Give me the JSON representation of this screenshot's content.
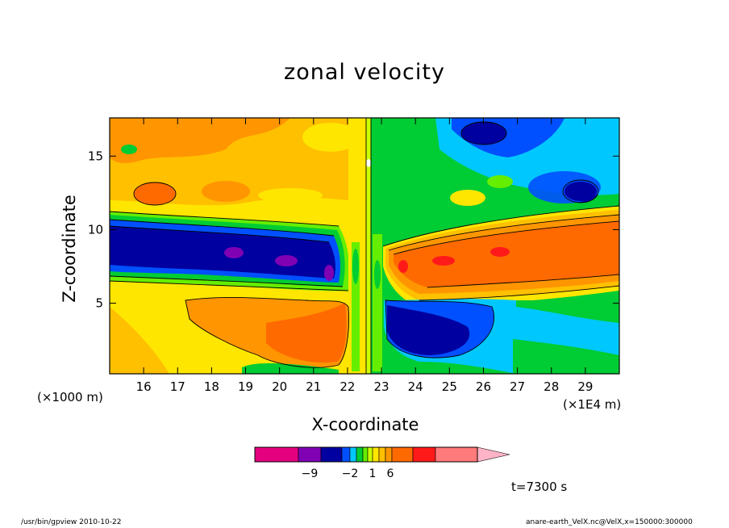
{
  "chart_data": {
    "type": "heatmap",
    "title": "zonal velocity",
    "xlabel": "X-coordinate",
    "ylabel": "Z-coordinate",
    "x_unit_left": "(×1000 m)",
    "x_unit_right": "(×1E4 m)",
    "x_ticks": [
      16,
      17,
      18,
      19,
      20,
      21,
      22,
      23,
      24,
      25,
      26,
      27,
      28,
      29
    ],
    "x_tick_labels": [
      "16",
      "17",
      "18",
      "19",
      "20",
      "21",
      "22",
      "23",
      "24",
      "25",
      "26",
      "27",
      "28",
      "29"
    ],
    "xlim": [
      15.0,
      30.0
    ],
    "y_ticks": [
      5,
      10,
      15
    ],
    "y_tick_labels": [
      "5",
      "10",
      "15"
    ],
    "ylim": [
      0.2,
      17.6
    ],
    "colorbar": {
      "labels": [
        {
          "value": -9,
          "text": "−9"
        },
        {
          "value": -2,
          "text": "−2"
        },
        {
          "value": 1,
          "text": "1"
        },
        {
          "value": 6,
          "text": "6"
        }
      ],
      "colors": [
        "#e5007f",
        "#8000b3",
        "#0000a0",
        "#0050ff",
        "#00c8ff",
        "#00cc33",
        "#66ee00",
        "#ccff00",
        "#ffe600",
        "#ffc000",
        "#ff9500",
        "#ff6a00",
        "#ff1a1a",
        "#ff7a7a",
        "#ffb3c6"
      ]
    },
    "regions": [
      {
        "name": "upper-left",
        "x": [
          15.0,
          22.4
        ],
        "z": [
          11.5,
          17.6
        ],
        "level": "orange-yellow mixed"
      },
      {
        "name": "negative-jet-left",
        "x": [
          15.0,
          22.0
        ],
        "z": [
          6.5,
          11.0
        ],
        "level": "blue (about −6)"
      },
      {
        "name": "lower-left",
        "x": [
          15.0,
          22.2
        ],
        "z": [
          0.2,
          6.0
        ],
        "level": "yellow to orange (about 3 to 6)"
      },
      {
        "name": "upper-right",
        "x": [
          22.6,
          30.0
        ],
        "z": [
          11.5,
          17.6
        ],
        "level": "green to blue (about 0 to −4)"
      },
      {
        "name": "positive-jet-right",
        "x": [
          23.2,
          30.0
        ],
        "z": [
          6.5,
          11.0
        ],
        "level": "orange-red (about 5)"
      },
      {
        "name": "lower-right",
        "x": [
          23.0,
          30.0
        ],
        "z": [
          0.2,
          6.0
        ],
        "level": "blue to cyan (about −4)"
      }
    ]
  },
  "annotations": {
    "time": "t=7300 s"
  },
  "footer": {
    "left": "/usr/bin/gpview   2010-10-22",
    "right": "anare-earth_VelX.nc@VelX,x=150000:300000"
  }
}
